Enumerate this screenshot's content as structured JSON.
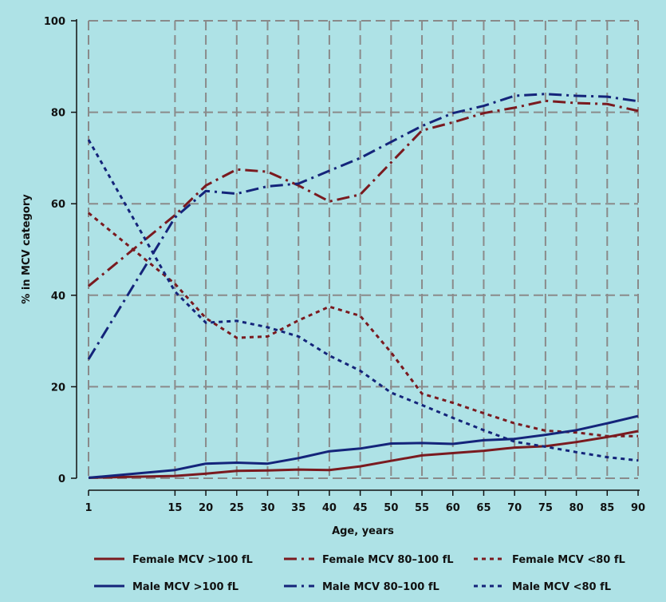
{
  "chart_data": {
    "type": "line",
    "title": "",
    "xlabel": "Age, years",
    "ylabel": "% in MCV category",
    "x": [
      1,
      15,
      20,
      25,
      30,
      35,
      40,
      45,
      50,
      55,
      60,
      65,
      70,
      75,
      80,
      85,
      90
    ],
    "xticks": [
      1,
      15,
      20,
      25,
      30,
      35,
      40,
      45,
      50,
      55,
      60,
      65,
      70,
      75,
      80,
      85,
      90
    ],
    "xlim": [
      1,
      90
    ],
    "ylim": [
      0,
      100
    ],
    "yticks": [
      0,
      20,
      40,
      60,
      80,
      100
    ],
    "grid": true,
    "legend_position": "bottom",
    "colors": {
      "female": "#7a1a1f",
      "male": "#14247a",
      "grid": "#8a8a8a",
      "axis": "#111111"
    },
    "series": [
      {
        "name": "Female MCV >100 fL",
        "sex": "female",
        "style": "solid",
        "values": [
          0.1,
          0.5,
          1.0,
          1.6,
          1.7,
          1.9,
          1.8,
          2.6,
          3.8,
          5.0,
          5.5,
          6.0,
          6.7,
          7.0,
          7.9,
          9.0,
          10.3
        ]
      },
      {
        "name": "Female MCV 80–100 fL",
        "sex": "female",
        "style": "dashdot",
        "values": [
          42.0,
          57.5,
          64.0,
          67.5,
          67.0,
          64.0,
          60.5,
          62.0,
          69.0,
          76.0,
          77.8,
          79.8,
          81.0,
          82.5,
          82.0,
          81.8,
          80.3
        ]
      },
      {
        "name": "Female MCV <80 fL",
        "sex": "female",
        "style": "dot",
        "values": [
          58.0,
          42.5,
          35.0,
          30.7,
          31.0,
          34.5,
          37.5,
          35.5,
          27.5,
          18.5,
          16.5,
          14.2,
          12.0,
          10.4,
          10.0,
          9.2,
          9.2
        ]
      },
      {
        "name": "Male MCV >100 fL",
        "sex": "male",
        "style": "solid",
        "values": [
          0.1,
          1.8,
          3.2,
          3.4,
          3.2,
          4.4,
          5.9,
          6.5,
          7.6,
          7.7,
          7.5,
          8.3,
          8.6,
          9.5,
          10.5,
          12.0,
          13.6
        ]
      },
      {
        "name": "Male MCV 80–100 fL",
        "sex": "male",
        "style": "dashdot",
        "values": [
          26.0,
          57.0,
          62.8,
          62.2,
          63.8,
          64.4,
          67.2,
          70.0,
          73.5,
          77.0,
          79.8,
          81.4,
          83.6,
          84.0,
          83.6,
          83.4,
          82.4
        ]
      },
      {
        "name": "Male MCV <80 fL",
        "sex": "male",
        "style": "dot",
        "values": [
          74.0,
          40.8,
          34.0,
          34.4,
          33.0,
          31.0,
          26.8,
          23.5,
          18.7,
          16.0,
          13.2,
          10.5,
          8.0,
          6.9,
          5.7,
          4.6,
          3.9
        ]
      }
    ]
  }
}
